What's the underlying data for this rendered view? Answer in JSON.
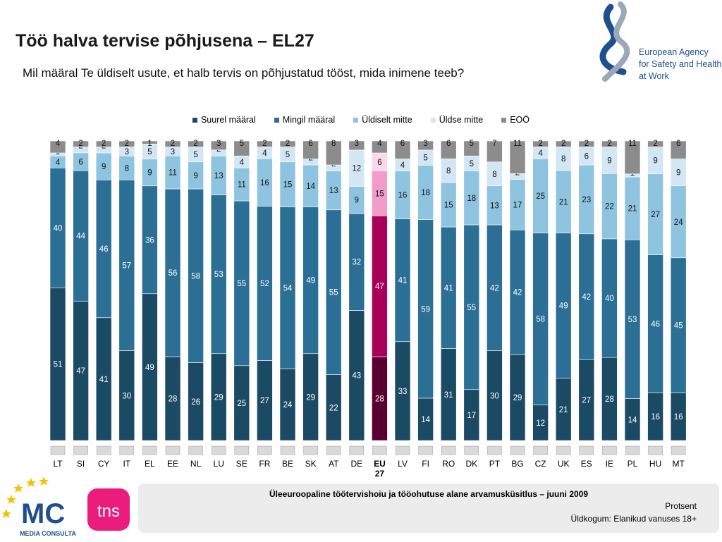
{
  "title": "Töö halva tervise põhjusena – EL27",
  "subtitle": "Mil määral Te üldiselt usute, et halb tervis on põhjustatud tööst, mida inimene teeb?",
  "logos": {
    "agency": {
      "lines": [
        "European Agency",
        "for Safety and Health",
        "at Work"
      ]
    },
    "media_consulta": {
      "name": "MEDIA CONSULTA"
    },
    "tns": {
      "name": "tns"
    }
  },
  "footer": {
    "survey": "Üleeuroopaline töötervishoiu ja tööohutuse alane arvamusküsitlus – juuni 2009",
    "unit": "Protsent",
    "sample": "Üldkogum: Elanikud vanuses 18+"
  },
  "chart_data": {
    "type": "bar",
    "stacked": true,
    "legend_position": "top",
    "grid": false,
    "categories": [
      "LT",
      "SI",
      "CY",
      "IT",
      "EL",
      "EE",
      "NL",
      "LU",
      "SE",
      "FR",
      "BE",
      "SK",
      "AT",
      "DE",
      "EU 27",
      "LV",
      "FI",
      "RO",
      "DK",
      "PT",
      "BG",
      "CZ",
      "UK",
      "ES",
      "IE",
      "PL",
      "HU",
      "MT"
    ],
    "highlight_category": "EU 27",
    "series": [
      {
        "name": "Suurel määral",
        "color": "#1b4a64",
        "highlight_color": "#5a0030",
        "values": [
          51,
          47,
          41,
          30,
          49,
          28,
          26,
          29,
          25,
          27,
          24,
          29,
          22,
          43,
          28,
          33,
          14,
          31,
          17,
          30,
          29,
          12,
          21,
          27,
          28,
          14,
          16,
          16
        ]
      },
      {
        "name": "Mingil määral",
        "color": "#2b6f95",
        "highlight_color": "#a8005a",
        "values": [
          40,
          44,
          46,
          57,
          36,
          56,
          58,
          53,
          55,
          52,
          54,
          49,
          55,
          32,
          47,
          41,
          59,
          41,
          55,
          42,
          42,
          58,
          49,
          42,
          40,
          53,
          46,
          45
        ]
      },
      {
        "name": "Üldiselt mitte",
        "color": "#8ec4df",
        "highlight_color": "#f29ccc",
        "values": [
          4,
          6,
          9,
          8,
          9,
          11,
          9,
          13,
          11,
          16,
          15,
          14,
          13,
          9,
          15,
          16,
          18,
          15,
          18,
          13,
          17,
          25,
          21,
          23,
          22,
          21,
          27,
          24
        ]
      },
      {
        "name": "Üldse mitte",
        "color": "#d2e7f3",
        "highlight_color": "#fbd7ea",
        "values": [
          1,
          2,
          2,
          3,
          5,
          3,
          5,
          2,
          4,
          4,
          5,
          2,
          2,
          12,
          6,
          4,
          5,
          8,
          5,
          8,
          2,
          4,
          8,
          6,
          9,
          1,
          9,
          9
        ]
      },
      {
        "name": "EOÖ",
        "color": "#8c8c8c",
        "highlight_color": "#8c8c8c",
        "values": [
          4,
          2,
          2,
          2,
          1,
          2,
          2,
          3,
          5,
          2,
          2,
          6,
          8,
          3,
          4,
          6,
          3,
          6,
          5,
          7,
          11,
          2,
          2,
          2,
          2,
          11,
          2,
          6
        ]
      }
    ]
  }
}
